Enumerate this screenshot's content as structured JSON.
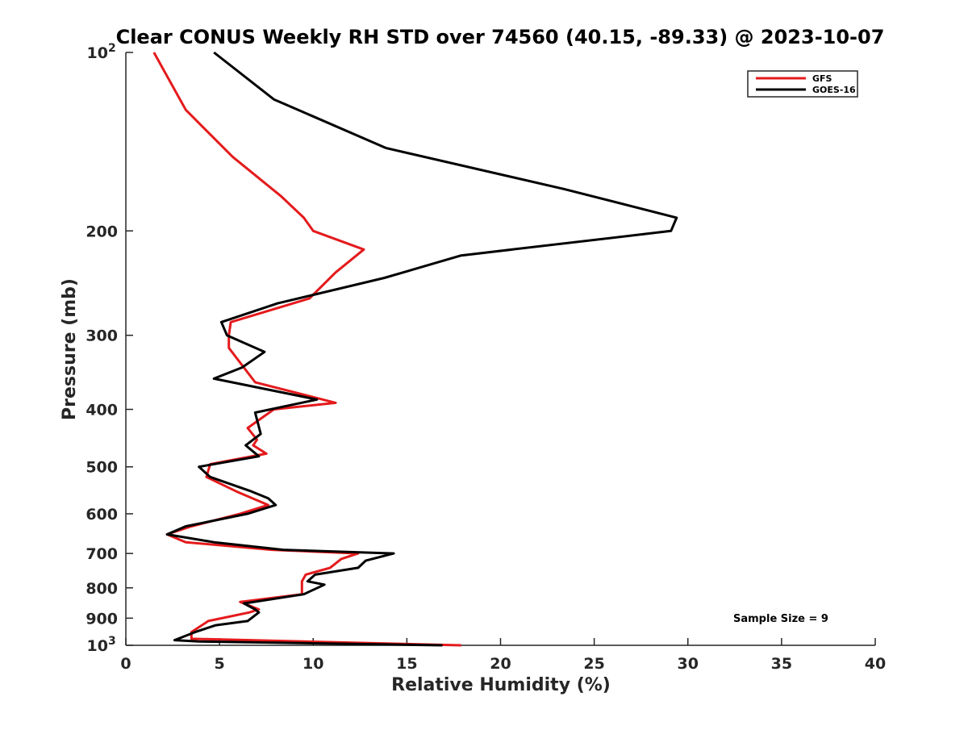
{
  "chart_data": {
    "type": "line",
    "title": "Clear CONUS Weekly RH STD over 74560 (40.15, -89.33) @ 2023-10-07",
    "xlabel": "Relative Humidity (%)",
    "ylabel": "Pressure (mb)",
    "xlim": [
      0,
      40
    ],
    "ylim": [
      100,
      1000
    ],
    "y_scale": "log",
    "y_reversed": true,
    "x_ticks": [
      0,
      5,
      10,
      15,
      20,
      25,
      30,
      35,
      40
    ],
    "x_tick_labels": [
      "0",
      "5",
      "10",
      "15",
      "20",
      "25",
      "30",
      "35",
      "40"
    ],
    "y_ticks": [
      100,
      200,
      300,
      400,
      500,
      600,
      700,
      800,
      900,
      1000
    ],
    "y_tick_labels": [
      {
        "base": "10",
        "sup": "2"
      },
      {
        "base": "200",
        "sup": ""
      },
      {
        "base": "300",
        "sup": ""
      },
      {
        "base": "400",
        "sup": ""
      },
      {
        "base": "500",
        "sup": ""
      },
      {
        "base": "600",
        "sup": ""
      },
      {
        "base": "700",
        "sup": ""
      },
      {
        "base": "800",
        "sup": ""
      },
      {
        "base": "900",
        "sup": ""
      },
      {
        "base": "10",
        "sup": "3"
      }
    ],
    "grid": false,
    "legend_position": "top-right",
    "annotation": "Sample Size = 9",
    "series": [
      {
        "name": "GFS",
        "color": "#e41a1c",
        "points": [
          [
            1.5,
            100
          ],
          [
            3.2,
            125
          ],
          [
            5.7,
            150
          ],
          [
            8.3,
            175
          ],
          [
            9.5,
            190
          ],
          [
            10.0,
            200
          ],
          [
            12.7,
            215
          ],
          [
            11.2,
            235
          ],
          [
            9.8,
            260
          ],
          [
            5.6,
            285
          ],
          [
            5.5,
            300
          ],
          [
            5.5,
            315
          ],
          [
            6.9,
            360
          ],
          [
            11.2,
            390
          ],
          [
            7.9,
            400
          ],
          [
            6.5,
            430
          ],
          [
            7.0,
            450
          ],
          [
            6.8,
            460
          ],
          [
            7.5,
            475
          ],
          [
            4.5,
            495
          ],
          [
            4.3,
            520
          ],
          [
            5.9,
            550
          ],
          [
            7.6,
            580
          ],
          [
            6.1,
            600
          ],
          [
            3.5,
            630
          ],
          [
            2.2,
            650
          ],
          [
            3.2,
            670
          ],
          [
            7.8,
            690
          ],
          [
            12.4,
            700
          ],
          [
            11.5,
            715
          ],
          [
            10.9,
            740
          ],
          [
            9.6,
            760
          ],
          [
            9.4,
            780
          ],
          [
            9.4,
            820
          ],
          [
            6.1,
            845
          ],
          [
            7.1,
            870
          ],
          [
            6.6,
            880
          ],
          [
            4.4,
            910
          ],
          [
            3.5,
            950
          ],
          [
            3.5,
            975
          ],
          [
            17.9,
            1000
          ]
        ]
      },
      {
        "name": "GOES-16",
        "color": "#000000",
        "points": [
          [
            4.7,
            100
          ],
          [
            7.9,
            120
          ],
          [
            13.9,
            145
          ],
          [
            23.4,
            170
          ],
          [
            29.4,
            190
          ],
          [
            29.1,
            200
          ],
          [
            17.9,
            220
          ],
          [
            13.8,
            240
          ],
          [
            8.1,
            265
          ],
          [
            5.1,
            285
          ],
          [
            5.4,
            300
          ],
          [
            7.4,
            320
          ],
          [
            6.2,
            340
          ],
          [
            4.7,
            355
          ],
          [
            10.2,
            385
          ],
          [
            6.9,
            405
          ],
          [
            7.2,
            440
          ],
          [
            6.4,
            460
          ],
          [
            7.1,
            480
          ],
          [
            3.9,
            500
          ],
          [
            4.5,
            520
          ],
          [
            6.7,
            550
          ],
          [
            7.6,
            565
          ],
          [
            8.0,
            580
          ],
          [
            6.5,
            600
          ],
          [
            3.2,
            630
          ],
          [
            2.2,
            650
          ],
          [
            4.7,
            670
          ],
          [
            8.4,
            690
          ],
          [
            14.3,
            700
          ],
          [
            12.8,
            720
          ],
          [
            12.4,
            740
          ],
          [
            10.1,
            760
          ],
          [
            9.7,
            780
          ],
          [
            10.6,
            790
          ],
          [
            9.5,
            820
          ],
          [
            6.3,
            850
          ],
          [
            6.9,
            870
          ],
          [
            7.1,
            880
          ],
          [
            6.5,
            910
          ],
          [
            4.8,
            925
          ],
          [
            3.7,
            950
          ],
          [
            2.6,
            980
          ],
          [
            3.9,
            985
          ],
          [
            16.9,
            1000
          ]
        ]
      }
    ]
  }
}
